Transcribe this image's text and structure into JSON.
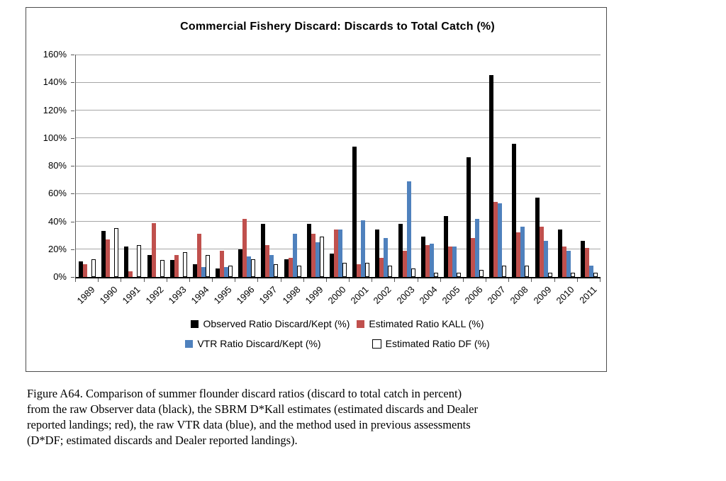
{
  "chart_data": {
    "type": "bar",
    "title": "Commercial Fishery Discard: Discards to Total Catch (%)",
    "categories": [
      "1989",
      "1990",
      "1991",
      "1992",
      "1993",
      "1994",
      "1995",
      "1996",
      "1997",
      "1998",
      "1999",
      "2000",
      "2001",
      "2002",
      "2003",
      "2004",
      "2005",
      "2006",
      "2007",
      "2008",
      "2009",
      "2010",
      "2011"
    ],
    "series": [
      {
        "name": "Observed Ratio Discard/Kept (%)",
        "color": "#000000",
        "outlined": false,
        "values": [
          11,
          33,
          22,
          16,
          12,
          9,
          6,
          20,
          38,
          13,
          38,
          17,
          94,
          34,
          38,
          29,
          44,
          86,
          145,
          96,
          57,
          34,
          26
        ]
      },
      {
        "name": "Estimated Ratio KALL (%)",
        "color": "#C0504D",
        "outlined": false,
        "values": [
          9,
          27,
          4,
          39,
          16,
          31,
          19,
          42,
          23,
          14,
          31,
          34,
          9,
          14,
          19,
          23,
          22,
          28,
          54,
          32,
          36,
          22,
          21
        ]
      },
      {
        "name": "VTR Ratio Discard/Kept (%)",
        "color": "#4F81BD",
        "outlined": false,
        "values": [
          null,
          null,
          null,
          null,
          null,
          7,
          7,
          15,
          16,
          31,
          25,
          34,
          41,
          28,
          69,
          24,
          22,
          42,
          53,
          36,
          26,
          19,
          8
        ]
      },
      {
        "name": "Estimated Ratio DF (%)",
        "color": "#FFFFFF",
        "outlined": true,
        "values": [
          13,
          35,
          23,
          12,
          18,
          16,
          8,
          13,
          9,
          8,
          29,
          10,
          10,
          8,
          6,
          3,
          3,
          5,
          8,
          8,
          3,
          3,
          3
        ]
      }
    ],
    "ylim": [
      0,
      160
    ],
    "ytick_step": 20,
    "ytick_labels": [
      "0%",
      "20%",
      "40%",
      "60%",
      "80%",
      "100%",
      "120%",
      "140%",
      "160%"
    ],
    "xlabel": "",
    "ylabel": "",
    "grid": true,
    "legend_position": "bottom",
    "legend_rows": [
      [
        0,
        1
      ],
      [
        2,
        3
      ]
    ],
    "colors": {
      "gridline": "#a6a6a6",
      "axis": "#000000",
      "frame_border": "#4d4d4d",
      "background": "#ffffff"
    }
  },
  "caption": {
    "lines": [
      "Figure A64. Comparison of summer flounder discard ratios (discard to total catch in percent)",
      "from the raw Observer data (black), the SBRM D*Kall estimates (estimated discards and Dealer",
      "reported landings; red), the raw VTR data (blue), and the method used in previous assessments",
      "(D*DF; estimated discards and Dealer reported landings)."
    ]
  }
}
